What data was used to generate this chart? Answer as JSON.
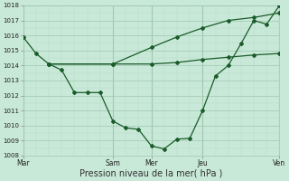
{
  "title": "",
  "xlabel": "Pression niveau de la mer( hPa )",
  "ylabel": "",
  "bg_color": "#c8e8d8",
  "grid_major_color": "#a0c8b0",
  "grid_minor_color": "#b8dcc8",
  "line_color": "#1a5c2a",
  "ylim": [
    1008,
    1018
  ],
  "yticks": [
    1008,
    1009,
    1010,
    1011,
    1012,
    1013,
    1014,
    1015,
    1016,
    1017,
    1018
  ],
  "xtick_labels": [
    "Mar",
    "",
    "Sam",
    "Mer",
    "",
    "Jeu",
    "",
    "Ven"
  ],
  "xtick_positions": [
    0,
    1.75,
    3.5,
    5.0,
    6.0,
    7.0,
    8.5,
    10.0
  ],
  "vline_x": [
    0,
    3.5,
    5.0,
    7.0,
    10.0
  ],
  "line1_x": [
    0,
    0.5,
    1.0,
    1.5,
    2.0,
    2.5,
    3.0,
    3.5,
    4.0,
    4.5,
    5.0,
    5.5,
    6.0,
    6.5,
    7.0,
    7.5,
    8.0,
    8.5,
    9.0,
    9.5,
    10.0
  ],
  "line1_y": [
    1015.9,
    1014.8,
    1014.1,
    1013.7,
    1012.2,
    1012.2,
    1012.2,
    1010.3,
    1009.85,
    1009.75,
    1008.65,
    1008.45,
    1009.1,
    1009.15,
    1011.0,
    1013.3,
    1014.0,
    1015.45,
    1017.0,
    1016.75,
    1018.0
  ],
  "line2_x": [
    1.0,
    3.5,
    5.0,
    6.0,
    7.0,
    8.0,
    9.0,
    10.0
  ],
  "line2_y": [
    1014.1,
    1014.1,
    1015.2,
    1015.9,
    1016.5,
    1017.0,
    1017.2,
    1017.5
  ],
  "line3_x": [
    1.0,
    3.5,
    5.0,
    6.0,
    7.0,
    8.0,
    9.0,
    10.0
  ],
  "line3_y": [
    1014.1,
    1014.1,
    1014.1,
    1014.2,
    1014.4,
    1014.55,
    1014.7,
    1014.8
  ],
  "marker": "D",
  "markersize": 2.0,
  "linewidth": 0.9,
  "xlabel_fontsize": 7,
  "ytick_fontsize": 5,
  "xtick_fontsize": 5.5
}
